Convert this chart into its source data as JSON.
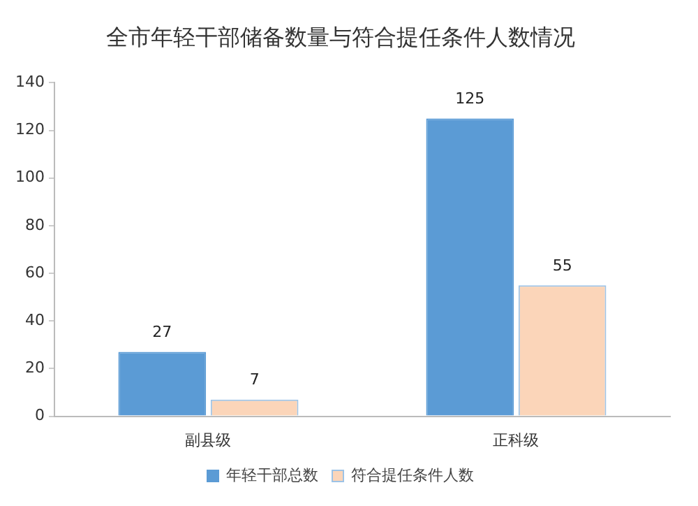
{
  "chart_data": {
    "type": "bar",
    "title": "全市年轻干部储备数量与符合提任条件人数情况",
    "categories": [
      "副县级",
      "正科级"
    ],
    "series": [
      {
        "name": "年轻干部总数",
        "color": "#5b9bd5",
        "values": [
          27,
          125
        ]
      },
      {
        "name": "符合提任条件人数",
        "color": "#fbd5b9",
        "values": [
          7,
          55
        ]
      }
    ],
    "ylim": [
      0,
      140
    ],
    "yticks": [
      0,
      20,
      40,
      60,
      80,
      100,
      120,
      140
    ],
    "grid": false,
    "legend": "bottom",
    "data_labels": true
  }
}
